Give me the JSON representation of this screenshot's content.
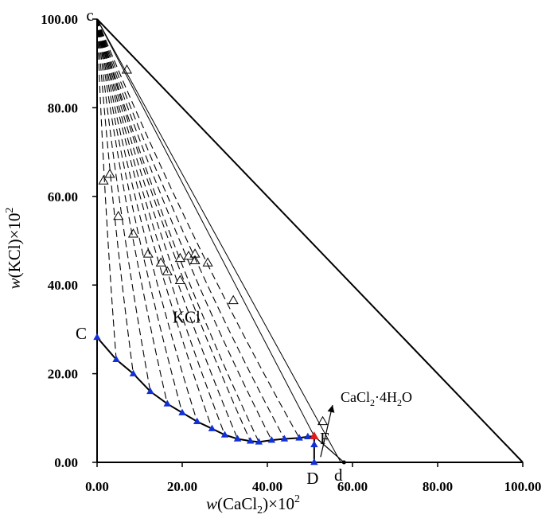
{
  "chart_data": {
    "type": "scatter",
    "title": "",
    "xlabel": {
      "var": "w",
      "text": "(CaCl",
      "sub": "2",
      "tail": ")×10",
      "sup": "2"
    },
    "ylabel": {
      "var": "w",
      "text": "(KCl)×10",
      "sup": "2"
    },
    "xlim": [
      0,
      100
    ],
    "ylim": [
      0,
      100
    ],
    "x_ticks": [
      "0.00",
      "20.00",
      "40.00",
      "60.00",
      "80.00",
      "100.00"
    ],
    "y_ticks": [
      "0.00",
      "20.00",
      "40.00",
      "60.00",
      "80.00",
      "100.00"
    ],
    "grid": false,
    "corners": {
      "c": [
        0,
        100
      ],
      "d": [
        58,
        0
      ],
      "water": [
        100,
        0
      ]
    },
    "point_labels": [
      {
        "text": "c",
        "x": 0,
        "y": 100
      },
      {
        "text": "C",
        "x": 0,
        "y": 28.2
      },
      {
        "text": "D",
        "x": 51.0,
        "y": 0
      },
      {
        "text": "d",
        "x": 58.0,
        "y": 0
      },
      {
        "text": "F",
        "x": 51.0,
        "y": 5.9
      }
    ],
    "region_label": {
      "text": "KCl",
      "x": 21.0,
      "y": 31.5
    },
    "phase_label": {
      "text": "CaCl",
      "sub": "2",
      "mid": "·4H",
      "sub2": "2",
      "tail": "O",
      "x": 53.5,
      "y": 13.4
    },
    "solubility_curve_CF": [
      [
        0,
        28.2
      ],
      [
        4.5,
        23.2
      ],
      [
        8.5,
        20.0
      ],
      [
        12.5,
        16.0
      ],
      [
        16.5,
        13.2
      ],
      [
        20.0,
        11.2
      ],
      [
        23.5,
        9.2
      ],
      [
        27.0,
        7.6
      ],
      [
        30.0,
        6.2
      ],
      [
        33.0,
        5.3
      ],
      [
        36.0,
        4.8
      ],
      [
        38.0,
        4.6
      ],
      [
        41.0,
        5.0
      ],
      [
        44.0,
        5.3
      ],
      [
        47.5,
        5.5
      ],
      [
        49.5,
        5.8
      ],
      [
        51.0,
        5.9
      ]
    ],
    "solubility_curve_FD": [
      [
        51.0,
        5.9
      ],
      [
        51.0,
        4.0
      ],
      [
        51.0,
        0
      ]
    ],
    "invariant_point_F": [
      51.0,
      5.9
    ],
    "wet_residues": [
      [
        1.5,
        63.5
      ],
      [
        3.0,
        65.0
      ],
      [
        7.0,
        88.5
      ],
      [
        5.0,
        55.5
      ],
      [
        8.5,
        51.5
      ],
      [
        12.0,
        47.0
      ],
      [
        15.0,
        45.0
      ],
      [
        16.5,
        43.0
      ],
      [
        19.5,
        41.0
      ],
      [
        19.5,
        46.0
      ],
      [
        21.5,
        46.5
      ],
      [
        23.0,
        45.5
      ],
      [
        23.0,
        47.0
      ],
      [
        26.0,
        45.0
      ],
      [
        32.0,
        36.5
      ],
      [
        53.0,
        9.2
      ]
    ],
    "tie_line_ends": [
      [
        4.5,
        23.2
      ],
      [
        8.5,
        20.0
      ],
      [
        12.5,
        16.0
      ],
      [
        16.5,
        13.2
      ],
      [
        20.0,
        11.2
      ],
      [
        23.5,
        9.2
      ],
      [
        27.0,
        7.6
      ],
      [
        30.0,
        6.2
      ],
      [
        33.0,
        5.3
      ],
      [
        36.0,
        4.8
      ],
      [
        38.0,
        4.6
      ],
      [
        41.0,
        5.0
      ],
      [
        44.0,
        5.3
      ],
      [
        47.5,
        5.5
      ]
    ],
    "tie_line_bulge": [
      0.8,
      1.2,
      1.6,
      2.0,
      2.4,
      2.8,
      3.1,
      3.4,
      3.6,
      3.8,
      4.0,
      4.0,
      3.8,
      3.4
    ],
    "colors": {
      "curve": "#000000",
      "solution_points": "#1230d8",
      "point_F": "#e01b1b",
      "residues": "#000000"
    }
  }
}
